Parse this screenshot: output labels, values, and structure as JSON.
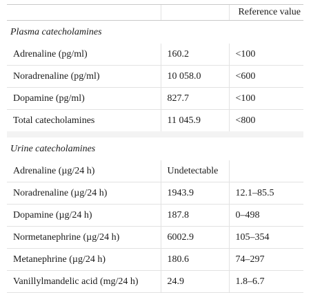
{
  "table": {
    "header": {
      "col1": "",
      "col2": "",
      "col3": "Reference value"
    },
    "sections": [
      {
        "title": "Plasma catecholamines",
        "rows": [
          {
            "name": "Adrenaline (pg/ml)",
            "value": "160.2",
            "reference": "<100"
          },
          {
            "name": "Noradrenaline (pg/ml)",
            "value": "10 058.0",
            "reference": "<600"
          },
          {
            "name": "Dopamine (pg/ml)",
            "value": "827.7",
            "reference": "<100"
          },
          {
            "name": "Total catecholamines",
            "value": "11 045.9",
            "reference": "<800"
          }
        ]
      },
      {
        "title": "Urine catecholamines",
        "rows": [
          {
            "name": "Adrenaline (µg/24 h)",
            "value": "Undetectable",
            "reference": ""
          },
          {
            "name": "Noradrenaline (µg/24 h)",
            "value": "1943.9",
            "reference": "12.1–85.5"
          },
          {
            "name": "Dopamine (µg/24 h)",
            "value": "187.8",
            "reference": "0–498"
          },
          {
            "name": "Normetanephrine (µg/24 h)",
            "value": "6002.9",
            "reference": "105–354"
          },
          {
            "name": "Metanephrine (µg/24 h)",
            "value": "180.6",
            "reference": "74–297"
          },
          {
            "name": "Vanillylmandelic acid (mg/24 h)",
            "value": "24.9",
            "reference": "1.8–6.7"
          }
        ]
      }
    ]
  }
}
